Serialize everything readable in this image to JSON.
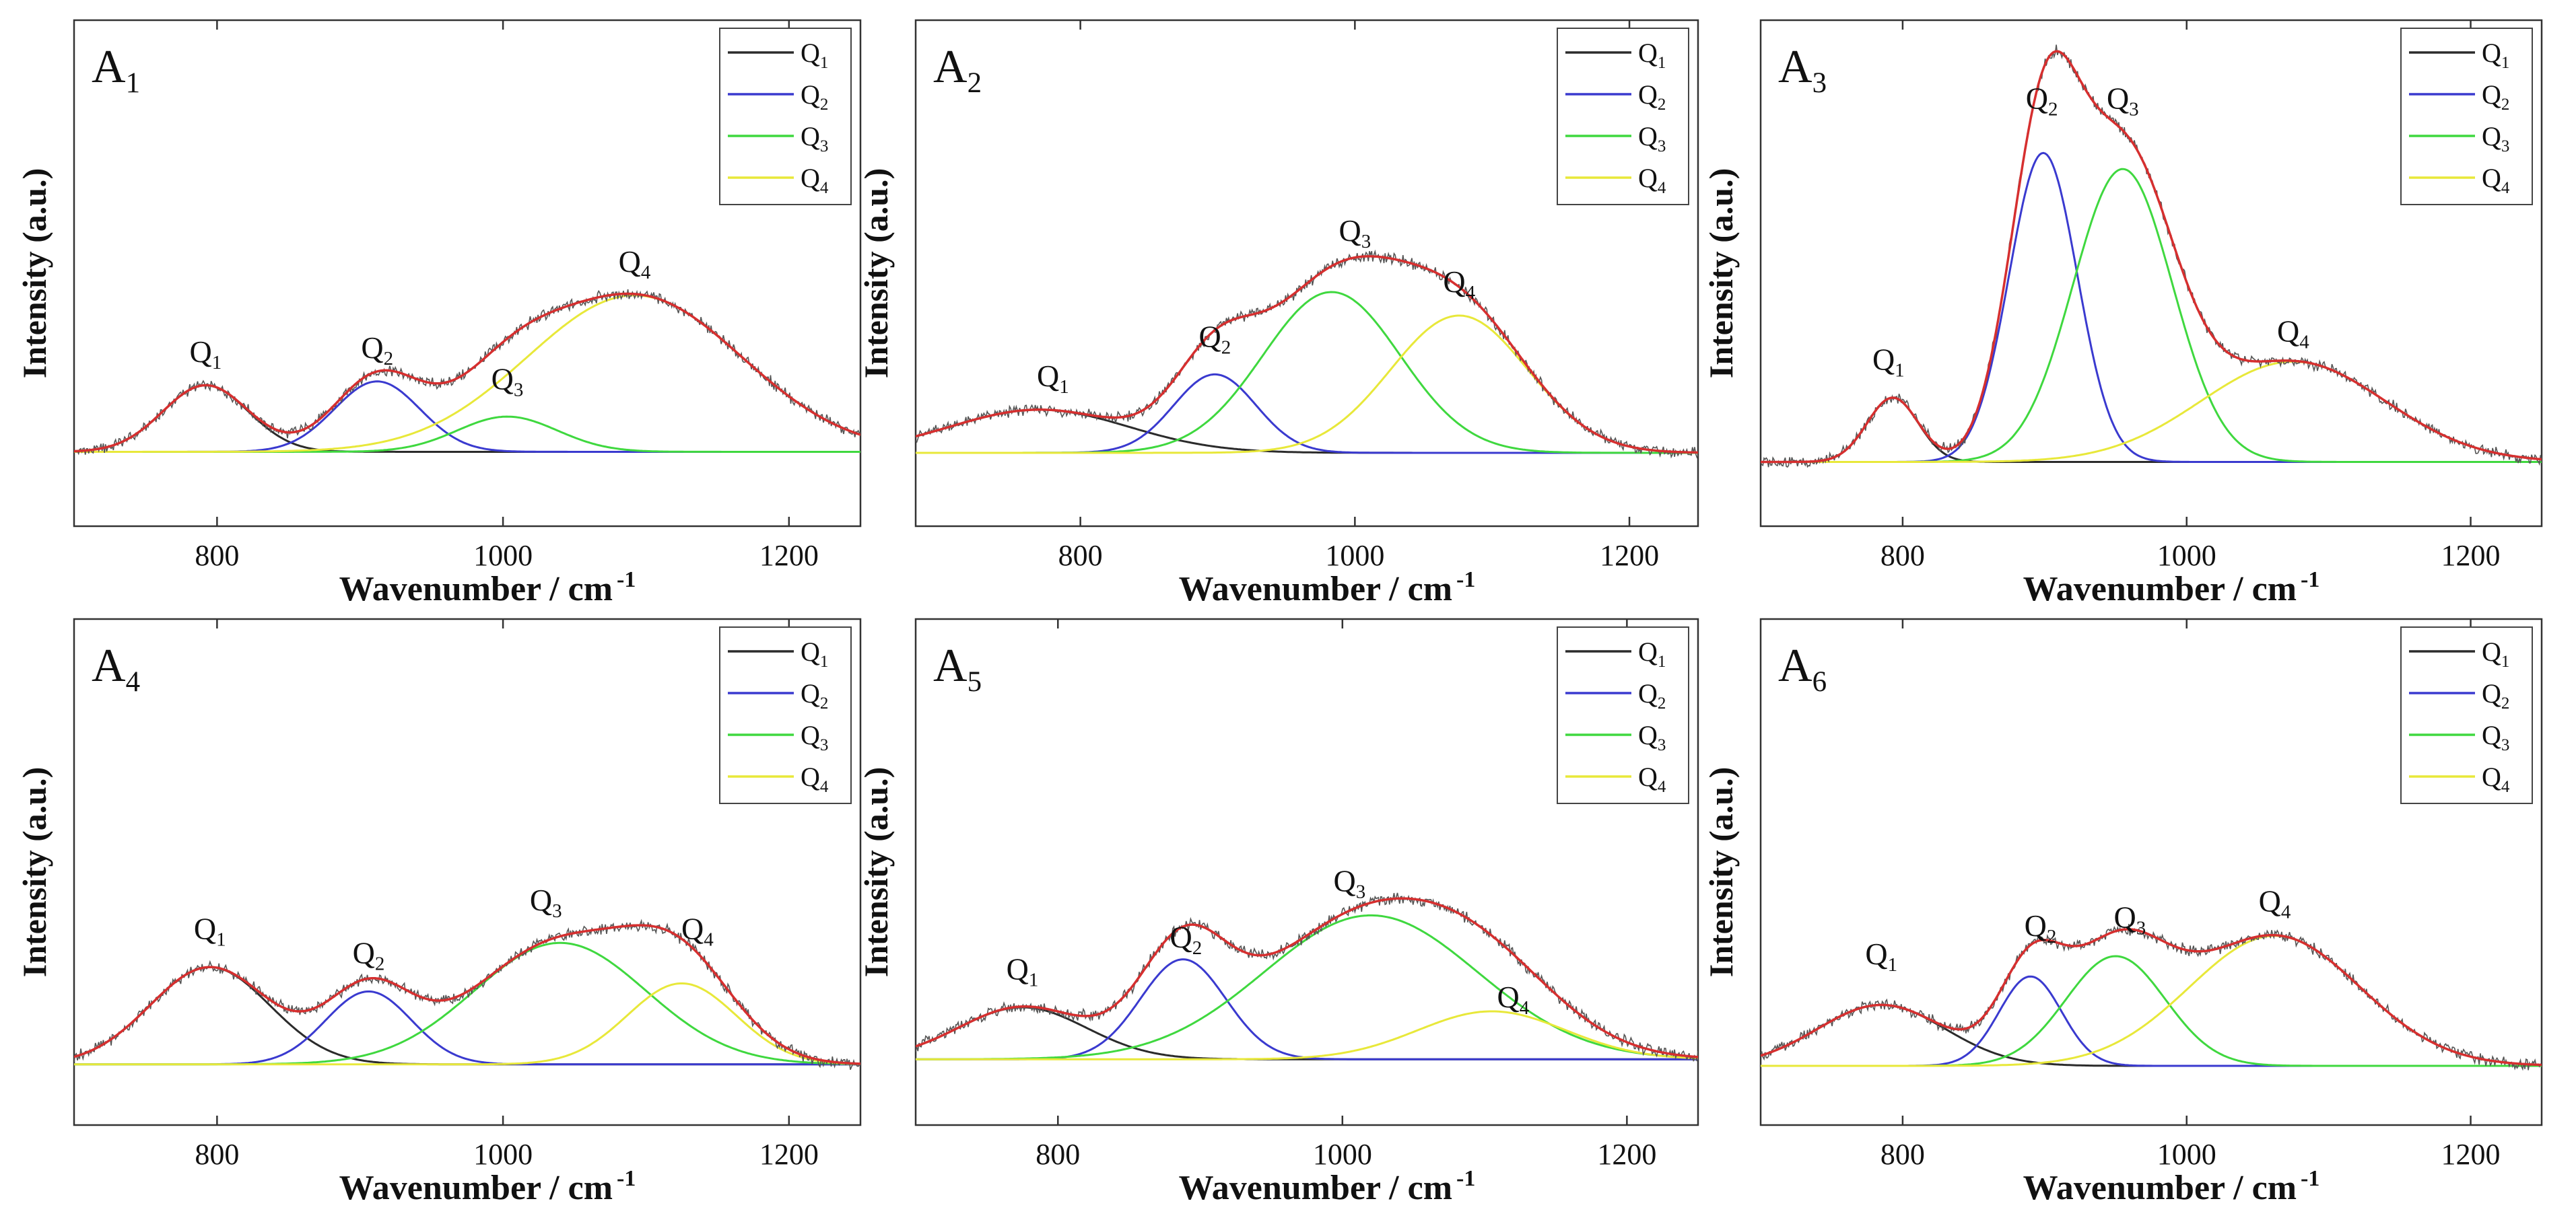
{
  "figure": {
    "xlabel": "Wavenumber / cm",
    "xlabel_sup": "-1",
    "ylabel": "Intensity (a.u.)"
  },
  "colors": {
    "Q1": "#2b2b2b",
    "Q2": "#3a3acf",
    "Q3": "#3fd83f",
    "Q4": "#e8e83a",
    "fit": "#d62f2f",
    "raw": "#555555",
    "frame": "#333333"
  },
  "chart_data": [
    {
      "type": "line",
      "panel": "A1",
      "title": "A",
      "title_sub": "1",
      "xlim": [
        700,
        1250
      ],
      "ylim": [
        0,
        100
      ],
      "xticks": [
        800,
        1000,
        1200
      ],
      "legend": [
        "Q1",
        "Q2",
        "Q3",
        "Q4"
      ],
      "legend_placement": "top-right",
      "peaks": [
        {
          "name": "Q1",
          "center": 792,
          "height": 17,
          "width": 30
        },
        {
          "name": "Q2",
          "center": 912,
          "height": 18,
          "width": 30
        },
        {
          "name": "Q3",
          "center": 1003,
          "height": 9,
          "width": 35
        },
        {
          "name": "Q4",
          "center": 1092,
          "height": 40,
          "width": 75
        }
      ],
      "annotations": [
        {
          "label": "Q",
          "sub": "1",
          "x": 792,
          "y": 23
        },
        {
          "label": "Q",
          "sub": "2",
          "x": 912,
          "y": 24
        },
        {
          "label": "Q",
          "sub": "3",
          "x": 1003,
          "y": 16
        },
        {
          "label": "Q",
          "sub": "4",
          "x": 1092,
          "y": 46
        }
      ]
    },
    {
      "type": "line",
      "panel": "A2",
      "title": "A",
      "title_sub": "2",
      "xlim": [
        680,
        1250
      ],
      "ylim": [
        0,
        100
      ],
      "xticks": [
        800,
        1000,
        1200
      ],
      "legend": [
        "Q1",
        "Q2",
        "Q3",
        "Q4"
      ],
      "legend_placement": "top-right",
      "peaks": [
        {
          "name": "Q1",
          "center": 770,
          "height": 11,
          "width": 65
        },
        {
          "name": "Q2",
          "center": 898,
          "height": 20,
          "width": 30
        },
        {
          "name": "Q3",
          "center": 983,
          "height": 41,
          "width": 50
        },
        {
          "name": "Q4",
          "center": 1076,
          "height": 35,
          "width": 50
        }
      ],
      "annotations": [
        {
          "label": "Q",
          "sub": "1",
          "x": 780,
          "y": 17
        },
        {
          "label": "Q",
          "sub": "2",
          "x": 898,
          "y": 27
        },
        {
          "label": "Q",
          "sub": "3",
          "x": 1000,
          "y": 54
        },
        {
          "label": "Q",
          "sub": "4",
          "x": 1076,
          "y": 41
        }
      ]
    },
    {
      "type": "line",
      "panel": "A3",
      "title": "A",
      "title_sub": "3",
      "xlim": [
        700,
        1250
      ],
      "ylim": [
        0,
        100
      ],
      "xticks": [
        800,
        1000,
        1200
      ],
      "legend": [
        "Q1",
        "Q2",
        "Q3",
        "Q4"
      ],
      "legend_placement": "top-right",
      "peaks": [
        {
          "name": "Q1",
          "center": 793,
          "height": 16,
          "width": 18
        },
        {
          "name": "Q2",
          "center": 899,
          "height": 77,
          "width": 24
        },
        {
          "name": "Q3",
          "center": 955,
          "height": 73,
          "width": 35
        },
        {
          "name": "Q4",
          "center": 1075,
          "height": 25,
          "width": 65
        }
      ],
      "annotations": [
        {
          "label": "Q",
          "sub": "1",
          "x": 790,
          "y": 23
        },
        {
          "label": "Q",
          "sub": "2",
          "x": 898,
          "y": 88
        },
        {
          "label": "Q",
          "sub": "3",
          "x": 955,
          "y": 88
        },
        {
          "label": "Q",
          "sub": "4",
          "x": 1075,
          "y": 30
        }
      ]
    },
    {
      "type": "line",
      "panel": "A4",
      "title": "A",
      "title_sub": "4",
      "xlim": [
        700,
        1250
      ],
      "ylim": [
        0,
        100
      ],
      "xticks": [
        800,
        1000,
        1200
      ],
      "legend": [
        "Q1",
        "Q2",
        "Q3",
        "Q4"
      ],
      "legend_placement": "top-right",
      "peaks": [
        {
          "name": "Q1",
          "center": 795,
          "height": 24,
          "width": 42
        },
        {
          "name": "Q2",
          "center": 906,
          "height": 18,
          "width": 30
        },
        {
          "name": "Q3",
          "center": 1040,
          "height": 30,
          "width": 60
        },
        {
          "name": "Q4",
          "center": 1125,
          "height": 20,
          "width": 38
        }
      ],
      "annotations": [
        {
          "label": "Q",
          "sub": "1",
          "x": 795,
          "y": 31
        },
        {
          "label": "Q",
          "sub": "2",
          "x": 906,
          "y": 25
        },
        {
          "label": "Q",
          "sub": "3",
          "x": 1030,
          "y": 38
        },
        {
          "label": "Q",
          "sub": "4",
          "x": 1136,
          "y": 31
        }
      ]
    },
    {
      "type": "line",
      "panel": "A5",
      "title": "A",
      "title_sub": "5",
      "xlim": [
        700,
        1250
      ],
      "ylim": [
        0,
        100
      ],
      "xticks": [
        800,
        1000,
        1200
      ],
      "legend": [
        "Q1",
        "Q2",
        "Q3",
        "Q4"
      ],
      "legend_placement": "top-right",
      "peaks": [
        {
          "name": "Q1",
          "center": 775,
          "height": 13,
          "width": 45
        },
        {
          "name": "Q2",
          "center": 888,
          "height": 25,
          "width": 30
        },
        {
          "name": "Q3",
          "center": 1020,
          "height": 36,
          "width": 75
        },
        {
          "name": "Q4",
          "center": 1105,
          "height": 12,
          "width": 52
        }
      ],
      "annotations": [
        {
          "label": "Q",
          "sub": "1",
          "x": 775,
          "y": 20
        },
        {
          "label": "Q",
          "sub": "2",
          "x": 890,
          "y": 28
        },
        {
          "label": "Q",
          "sub": "3",
          "x": 1005,
          "y": 42
        },
        {
          "label": "Q",
          "sub": "4",
          "x": 1120,
          "y": 13
        }
      ]
    },
    {
      "type": "line",
      "panel": "A6",
      "title": "A",
      "title_sub": "6",
      "xlim": [
        700,
        1250
      ],
      "ylim": [
        0,
        100
      ],
      "xticks": [
        800,
        1000,
        1200
      ],
      "legend": [
        "Q1",
        "Q2",
        "Q3",
        "Q4"
      ],
      "legend_placement": "top-right",
      "peaks": [
        {
          "name": "Q1",
          "center": 785,
          "height": 15,
          "width": 45
        },
        {
          "name": "Q2",
          "center": 890,
          "height": 22,
          "width": 22
        },
        {
          "name": "Q3",
          "center": 950,
          "height": 27,
          "width": 35
        },
        {
          "name": "Q4",
          "center": 1062,
          "height": 32,
          "width": 60
        }
      ],
      "annotations": [
        {
          "label": "Q",
          "sub": "1",
          "x": 785,
          "y": 25
        },
        {
          "label": "Q",
          "sub": "2",
          "x": 897,
          "y": 32
        },
        {
          "label": "Q",
          "sub": "3",
          "x": 960,
          "y": 34
        },
        {
          "label": "Q",
          "sub": "4",
          "x": 1062,
          "y": 38
        }
      ]
    }
  ]
}
